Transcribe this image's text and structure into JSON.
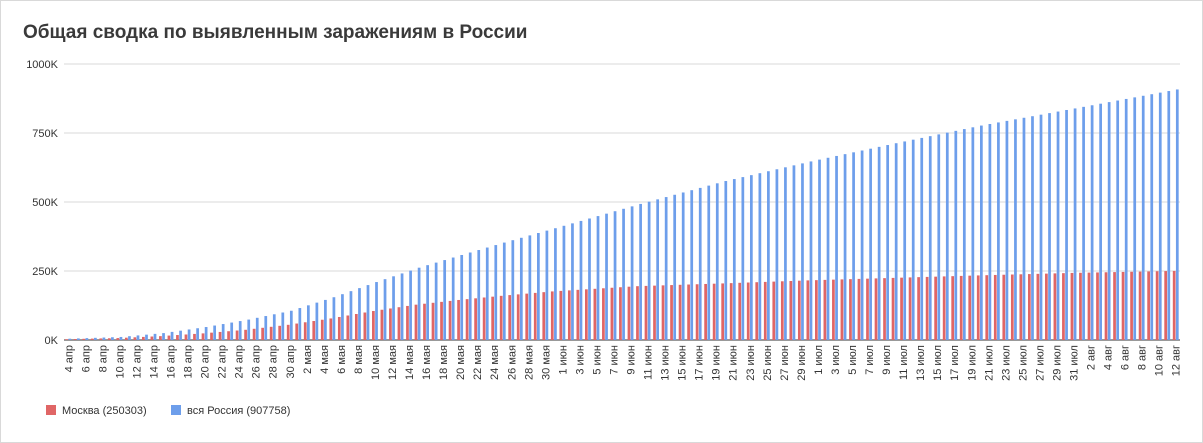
{
  "colors": {
    "moscow": "#e06666",
    "russia": "#6d9eeb",
    "grid": "#d9d9d9",
    "baseline": "#333333"
  },
  "chart_data": {
    "type": "bar",
    "title": "Общая сводка по выявленным заражениям в России",
    "start_date": "2020-04-04",
    "end_date": "2020-08-12",
    "ylim": [
      0,
      1000000
    ],
    "y_ticks": [
      {
        "value": 0,
        "label": "0K"
      },
      {
        "value": 250000,
        "label": "250K"
      },
      {
        "value": 500000,
        "label": "500K"
      },
      {
        "value": 750000,
        "label": "750K"
      },
      {
        "value": 1000000,
        "label": "1000K"
      }
    ],
    "categories": [
      "4 апр",
      "5 апр",
      "6 апр",
      "7 апр",
      "8 апр",
      "9 апр",
      "10 апр",
      "11 апр",
      "12 апр",
      "13 апр",
      "14 апр",
      "15 апр",
      "16 апр",
      "17 апр",
      "18 апр",
      "19 апр",
      "20 апр",
      "21 апр",
      "22 апр",
      "23 апр",
      "24 апр",
      "25 апр",
      "26 апр",
      "27 апр",
      "28 апр",
      "29 апр",
      "30 апр",
      "1 мая",
      "2 мая",
      "3 мая",
      "4 мая",
      "5 мая",
      "6 мая",
      "7 мая",
      "8 мая",
      "9 мая",
      "10 мая",
      "11 мая",
      "12 мая",
      "13 мая",
      "14 мая",
      "15 мая",
      "16 мая",
      "17 мая",
      "18 мая",
      "19 мая",
      "20 мая",
      "21 мая",
      "22 мая",
      "23 мая",
      "24 мая",
      "25 мая",
      "26 мая",
      "27 мая",
      "28 мая",
      "29 мая",
      "30 мая",
      "31 мая",
      "1 июн",
      "2 июн",
      "3 июн",
      "4 июн",
      "5 июн",
      "6 июн",
      "7 июн",
      "8 июн",
      "9 июн",
      "10 июн",
      "11 июн",
      "12 июн",
      "13 июн",
      "14 июн",
      "15 июн",
      "16 июн",
      "17 июн",
      "18 июн",
      "19 июн",
      "20 июн",
      "21 июн",
      "22 июн",
      "23 июн",
      "24 июн",
      "25 июн",
      "26 июн",
      "27 июн",
      "28 июн",
      "29 июн",
      "30 июн",
      "1 июл",
      "2 июл",
      "3 июл",
      "4 июл",
      "5 июл",
      "6 июл",
      "7 июл",
      "8 июл",
      "9 июл",
      "10 июл",
      "11 июл",
      "12 июл",
      "13 июл",
      "14 июл",
      "15 июл",
      "16 июл",
      "17 июл",
      "18 июл",
      "19 июл",
      "20 июл",
      "21 июл",
      "22 июл",
      "23 июл",
      "24 июл",
      "25 июл",
      "26 июл",
      "27 июл",
      "28 июл",
      "29 июл",
      "30 июл",
      "31 июл",
      "1 авг",
      "2 авг",
      "3 авг",
      "4 авг",
      "5 авг",
      "6 авг",
      "7 авг",
      "8 авг",
      "9 авг",
      "10 авг",
      "11 авг",
      "12 авг"
    ],
    "x_tick_labels": [
      "4 апр",
      "6 апр",
      "8 апр",
      "10 апр",
      "12 апр",
      "14 апр",
      "16 апр",
      "18 апр",
      "20 апр",
      "22 апр",
      "24 апр",
      "26 апр",
      "28 апр",
      "30 апр",
      "2 мая",
      "4 мая",
      "6 мая",
      "8 мая",
      "10 мая",
      "12 мая",
      "14 мая",
      "16 мая",
      "18 мая",
      "20 мая",
      "22 мая",
      "24 мая",
      "26 мая",
      "28 мая",
      "30 мая",
      "1 июн",
      "3 июн",
      "5 июн",
      "7 июн",
      "9 июн",
      "11 июн",
      "13 июн",
      "15 июн",
      "17 июн",
      "19 июн",
      "21 июн",
      "23 июн",
      "25 июн",
      "27 июн",
      "29 июн",
      "1 июл",
      "3 июл",
      "5 июл",
      "7 июл",
      "9 июл",
      "11 июл",
      "13 июл",
      "15 июл",
      "17 июл",
      "19 июл",
      "21 июл",
      "23 июл",
      "25 июл",
      "27 июл",
      "29 июл",
      "31 июл",
      "2 авг",
      "4 авг",
      "6 авг",
      "8 авг",
      "10 авг",
      "12 авг"
    ],
    "series": [
      {
        "name": "Москва (250303)",
        "color": "#e06666",
        "key_points": [
          [
            "2020-04-04",
            3000
          ],
          [
            "2020-04-10",
            7000
          ],
          [
            "2020-04-15",
            14000
          ],
          [
            "2020-04-20",
            24000
          ],
          [
            "2020-04-25",
            37000
          ],
          [
            "2020-04-30",
            55000
          ],
          [
            "2020-05-05",
            78000
          ],
          [
            "2020-05-10",
            105000
          ],
          [
            "2020-05-15",
            128000
          ],
          [
            "2020-05-20",
            145000
          ],
          [
            "2020-05-25",
            160000
          ],
          [
            "2020-05-31",
            176000
          ],
          [
            "2020-06-10",
            195000
          ],
          [
            "2020-06-20",
            205000
          ],
          [
            "2020-06-30",
            216000
          ],
          [
            "2020-07-10",
            225000
          ],
          [
            "2020-07-20",
            234000
          ],
          [
            "2020-07-31",
            243000
          ],
          [
            "2020-08-12",
            250303
          ]
        ]
      },
      {
        "name": "вся Россия (907758)",
        "color": "#6d9eeb",
        "key_points": [
          [
            "2020-04-04",
            4700
          ],
          [
            "2020-04-10",
            11000
          ],
          [
            "2020-04-15",
            25000
          ],
          [
            "2020-04-20",
            47000
          ],
          [
            "2020-04-25",
            74000
          ],
          [
            "2020-04-30",
            106000
          ],
          [
            "2020-05-05",
            155000
          ],
          [
            "2020-05-10",
            210000
          ],
          [
            "2020-05-15",
            262000
          ],
          [
            "2020-05-20",
            308000
          ],
          [
            "2020-05-25",
            353000
          ],
          [
            "2020-05-31",
            405000
          ],
          [
            "2020-06-10",
            493000
          ],
          [
            "2020-06-20",
            576000
          ],
          [
            "2020-06-30",
            647000
          ],
          [
            "2020-07-10",
            713000
          ],
          [
            "2020-07-20",
            777000
          ],
          [
            "2020-07-31",
            839000
          ],
          [
            "2020-08-12",
            907758
          ]
        ]
      }
    ],
    "legend": {
      "position": "bottom-left"
    },
    "grid": true
  }
}
